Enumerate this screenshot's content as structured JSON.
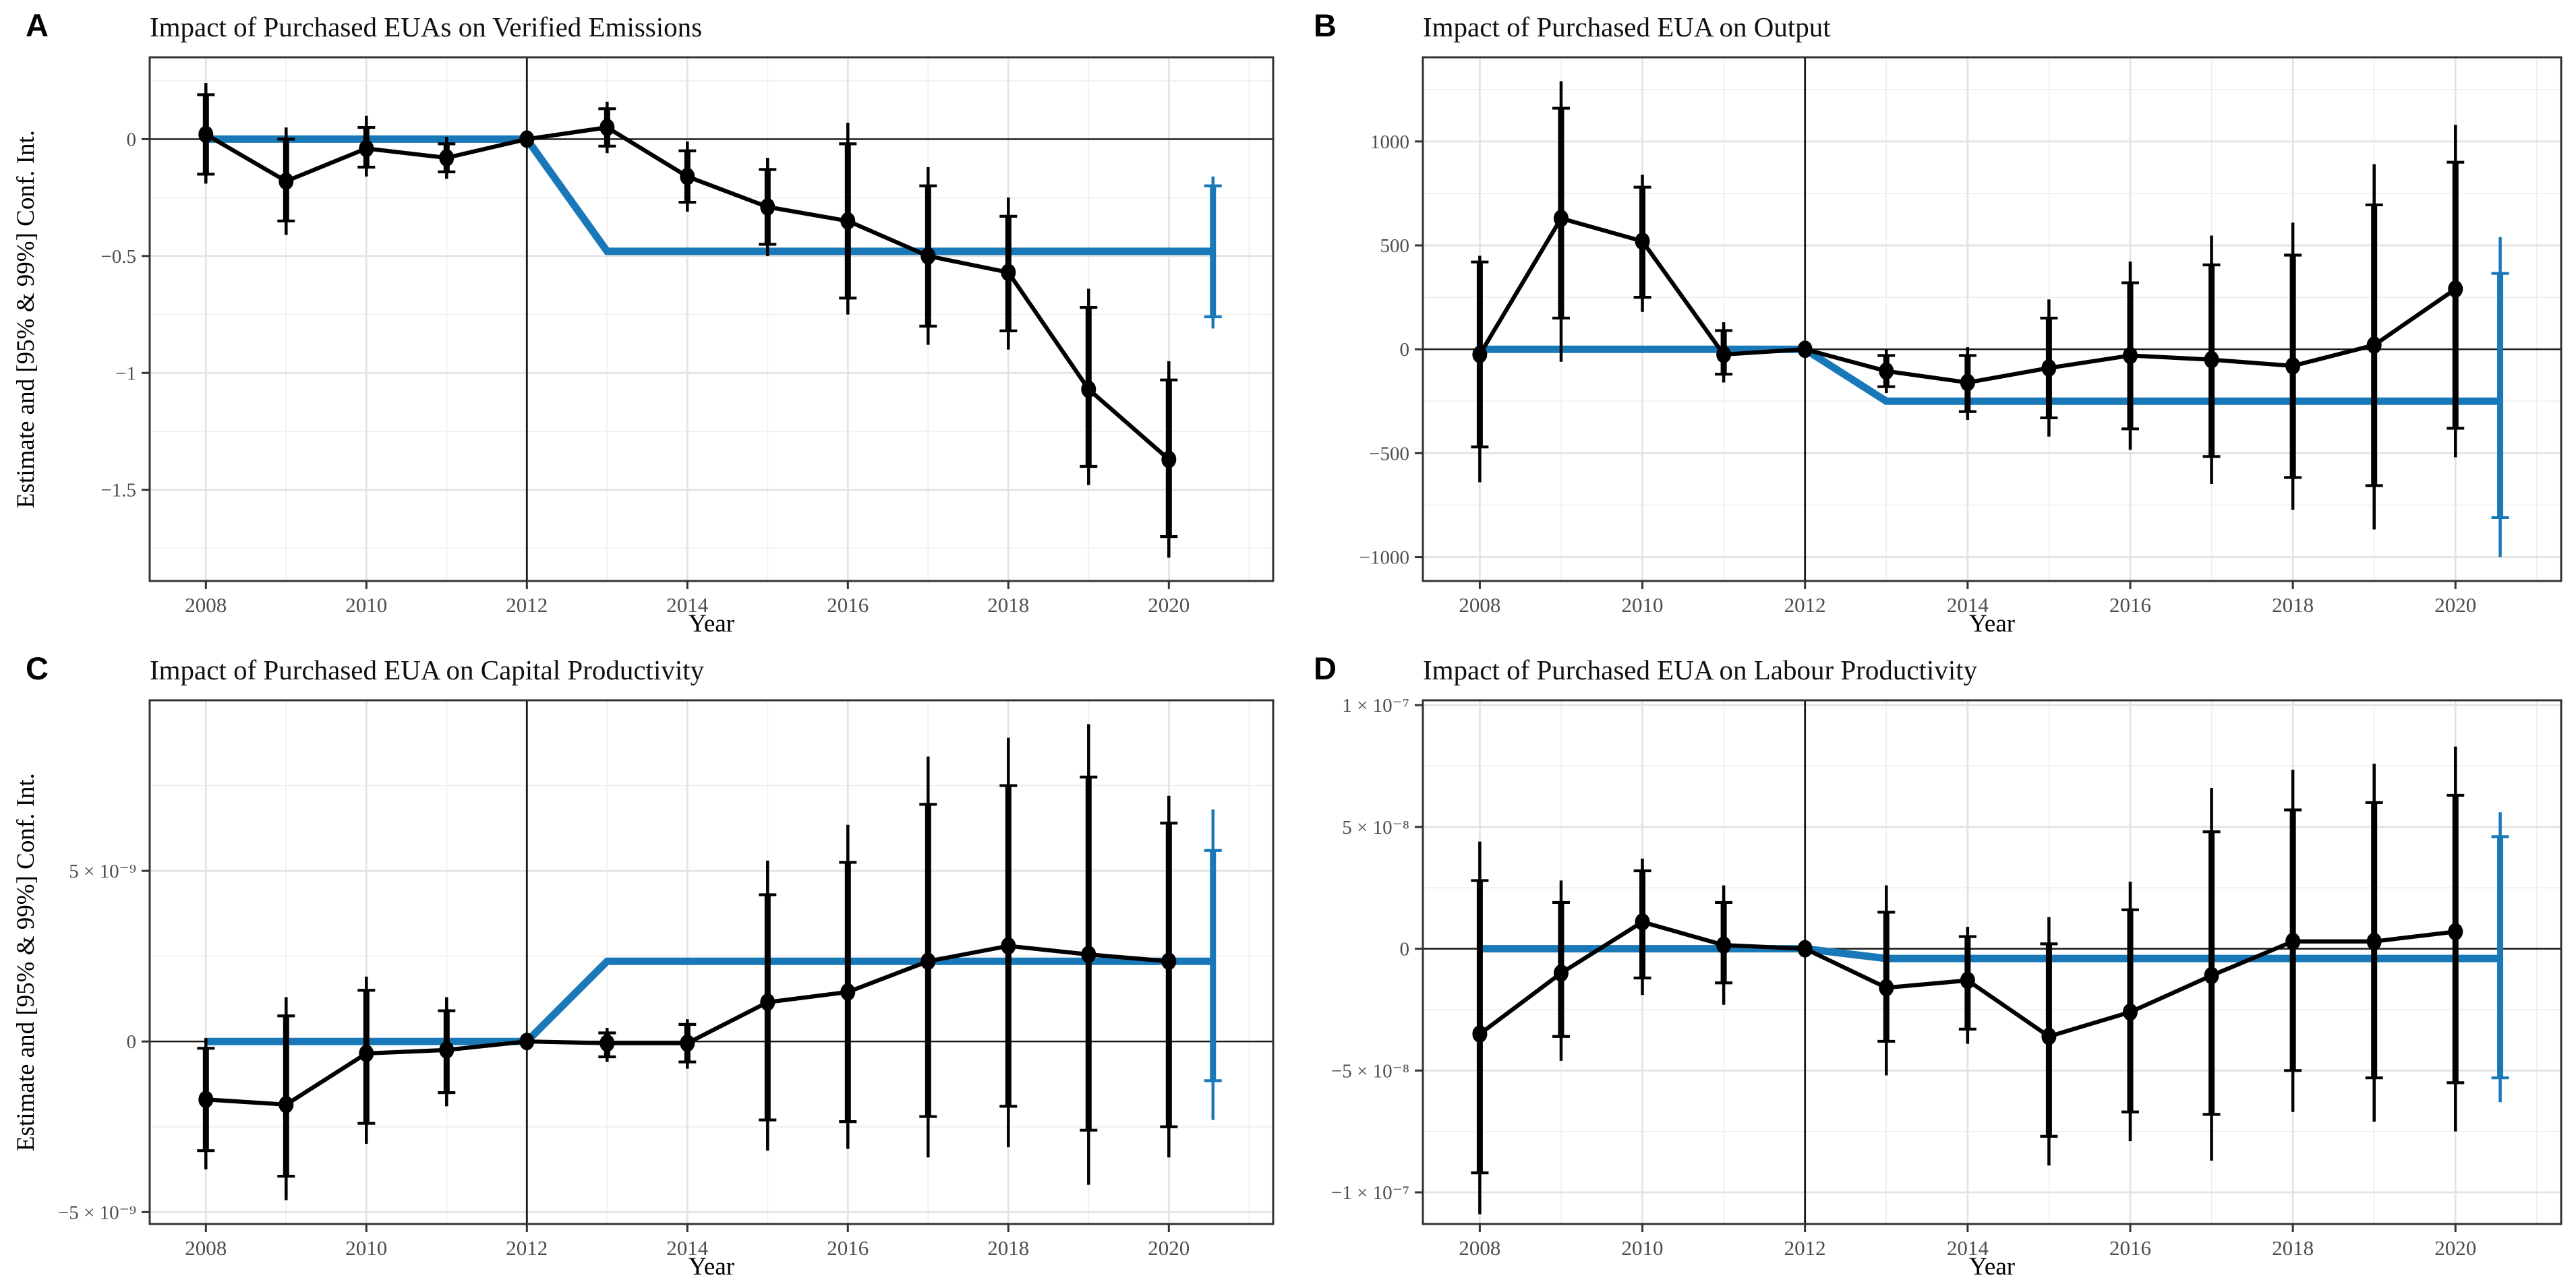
{
  "figure": {
    "colors": {
      "treatment_blue": "#1878b8",
      "series_black": "#000000",
      "grid_major": "#e3e3e3",
      "grid_minor": "#efefef",
      "panel_border": "#333333",
      "reference_line": "#1a1a1a",
      "tick_text": "#4d4d4d",
      "background": "#ffffff"
    }
  },
  "chart_data": [
    {
      "type": "line",
      "panel_label": "A",
      "title": "Impact of Purchased EUAs on Verified Emissions",
      "xlabel": "Year",
      "ylabel": "Estimate and [95% & 99%] Conf. Int.",
      "show_ylabel": true,
      "xlim": [
        2007.3,
        2021.3
      ],
      "ylim": [
        -1.89,
        0.35
      ],
      "x_ticks": [
        2008,
        2010,
        2012,
        2014,
        2016,
        2018,
        2020
      ],
      "x_minor": [
        2009,
        2011,
        2013,
        2015,
        2017,
        2019,
        2021
      ],
      "y_ticks": [
        {
          "v": 0,
          "label": "0"
        },
        {
          "v": -0.5,
          "label": "−0.5"
        },
        {
          "v": -1,
          "label": "−1"
        },
        {
          "v": -1.5,
          "label": "−1.5"
        }
      ],
      "y_minor": [
        0.25,
        -0.25,
        -0.75,
        -1.25,
        -1.75
      ],
      "hline_y": 0,
      "vline_x": 2012,
      "x": [
        2008,
        2009,
        2010,
        2011,
        2012,
        2013,
        2014,
        2015,
        2016,
        2017,
        2018,
        2019,
        2020
      ],
      "estimates": [
        0.02,
        -0.18,
        -0.04,
        -0.08,
        0,
        0.05,
        -0.16,
        -0.29,
        -0.35,
        -0.5,
        -0.57,
        -1.07,
        -1.37
      ],
      "ci95_low": [
        -0.15,
        -0.35,
        -0.12,
        -0.14,
        null,
        -0.03,
        -0.27,
        -0.45,
        -0.68,
        -0.8,
        -0.82,
        -1.4,
        -1.7
      ],
      "ci95_high": [
        0.19,
        0.0,
        0.05,
        -0.02,
        null,
        0.13,
        -0.05,
        -0.13,
        -0.02,
        -0.2,
        -0.33,
        -0.72,
        -1.03
      ],
      "ci99_low": [
        -0.19,
        -0.41,
        -0.16,
        -0.17,
        null,
        -0.06,
        -0.31,
        -0.5,
        -0.75,
        -0.88,
        -0.9,
        -1.48,
        -1.79
      ],
      "ci99_high": [
        0.24,
        0.05,
        0.1,
        0.01,
        null,
        0.16,
        -0.01,
        -0.08,
        0.07,
        -0.12,
        -0.25,
        -0.64,
        -0.95
      ],
      "treatment_line": {
        "x": [
          2008,
          2012,
          2013,
          2020.55
        ],
        "y": [
          0,
          0,
          -0.48,
          -0.48
        ]
      },
      "treatment_ci": {
        "x": 2020.55,
        "ci95": [
          -0.76,
          -0.2
        ],
        "ci99": [
          -0.81,
          -0.16
        ]
      }
    },
    {
      "type": "line",
      "panel_label": "B",
      "title": "Impact of Purchased EUA on Output",
      "xlabel": "Year",
      "ylabel": "",
      "show_ylabel": false,
      "xlim": [
        2007.3,
        2021.3
      ],
      "ylim": [
        -1115,
        1405
      ],
      "x_ticks": [
        2008,
        2010,
        2012,
        2014,
        2016,
        2018,
        2020
      ],
      "x_minor": [
        2009,
        2011,
        2013,
        2015,
        2017,
        2019,
        2021
      ],
      "y_ticks": [
        {
          "v": 1000,
          "label": "1000"
        },
        {
          "v": 500,
          "label": "500"
        },
        {
          "v": 0,
          "label": "0"
        },
        {
          "v": -500,
          "label": "−500"
        },
        {
          "v": -1000,
          "label": "−1000"
        }
      ],
      "y_minor": [
        1250,
        750,
        250,
        -250,
        -750
      ],
      "hline_y": 0,
      "vline_x": 2012,
      "x": [
        2008,
        2009,
        2010,
        2011,
        2012,
        2013,
        2014,
        2015,
        2016,
        2017,
        2018,
        2019,
        2020
      ],
      "estimates": [
        -25,
        630,
        520,
        -25,
        0,
        -105,
        -160,
        -90,
        -30,
        -50,
        -80,
        20,
        290
      ],
      "ci95_low": [
        -470,
        150,
        250,
        -120,
        null,
        -180,
        -300,
        -330,
        -383,
        -516,
        -617,
        -656,
        -380
      ],
      "ci95_high": [
        420,
        1160,
        780,
        90,
        null,
        -30,
        -30,
        150,
        320,
        406,
        453,
        695,
        900
      ],
      "ci99_low": [
        -640,
        -60,
        180,
        -160,
        null,
        -210,
        -340,
        -420,
        -484,
        -648,
        -773,
        -867,
        -520
      ],
      "ci99_high": [
        450,
        1290,
        840,
        130,
        null,
        0,
        10,
        240,
        422,
        547,
        609,
        891,
        1080
      ],
      "treatment_line": {
        "x": [
          2008,
          2012,
          2013,
          2020.55
        ],
        "y": [
          0,
          0,
          -250,
          -250
        ]
      },
      "treatment_ci": {
        "x": 2020.55,
        "ci95": [
          -810,
          365
        ],
        "ci99": [
          -1000,
          540
        ]
      }
    },
    {
      "type": "line",
      "panel_label": "C",
      "title": "Impact of Purchased EUA on Capital Productivity",
      "xlabel": "Year",
      "ylabel": "Estimate and [95% & 99%] Conf. Int.",
      "show_ylabel": true,
      "xlim": [
        2007.3,
        2021.3
      ],
      "ylim": [
        -5.35e-09,
        1e-08
      ],
      "x_ticks": [
        2008,
        2010,
        2012,
        2014,
        2016,
        2018,
        2020
      ],
      "x_minor": [
        2009,
        2011,
        2013,
        2015,
        2017,
        2019,
        2021
      ],
      "y_ticks": [
        {
          "v": 5e-09,
          "label": "5 × 10⁻⁹"
        },
        {
          "v": 0,
          "label": "0"
        },
        {
          "v": -5e-09,
          "label": "−5 × 10⁻⁹"
        }
      ],
      "y_minor": [
        7.5e-09,
        2.5e-09,
        -2.5e-09
      ],
      "hline_y": 0,
      "vline_x": 2012,
      "x": [
        2008,
        2009,
        2010,
        2011,
        2012,
        2013,
        2014,
        2015,
        2016,
        2017,
        2018,
        2019,
        2020
      ],
      "estimates": [
        -1.7e-09,
        -1.85e-09,
        -3.5e-10,
        -2.5e-10,
        0,
        -5e-11,
        -5e-11,
        1.15e-09,
        1.45e-09,
        2.35e-09,
        2.8e-09,
        2.55e-09,
        2.35e-09
      ],
      "ci95_low": [
        -3.2e-09,
        -3.95e-09,
        -2.4e-09,
        -1.5e-09,
        null,
        -4.5e-10,
        -6e-10,
        -2.3e-09,
        -2.35e-09,
        -2.2e-09,
        -1.9e-09,
        -2.6e-09,
        -2.5e-09
      ],
      "ci95_high": [
        -2e-10,
        7.5e-10,
        1.5e-09,
        9e-10,
        null,
        2.5e-10,
        5e-10,
        4.3e-09,
        5.25e-09,
        6.95e-09,
        7.5e-09,
        7.75e-09,
        6.4e-09
      ],
      "ci99_low": [
        -3.75e-09,
        -4.65e-09,
        -3e-09,
        -1.9e-09,
        null,
        -6e-10,
        -8e-10,
        -3.2e-09,
        -3.15e-09,
        -3.4e-09,
        -3.1e-09,
        -4.2e-09,
        -3.4e-09
      ],
      "ci99_high": [
        1e-10,
        1.3e-09,
        1.9e-09,
        1.3e-09,
        null,
        4e-10,
        6.5e-10,
        5.3e-09,
        6.35e-09,
        8.35e-09,
        8.9e-09,
        9.3e-09,
        7.2e-09
      ],
      "treatment_line": {
        "x": [
          2008,
          2012,
          2013,
          2020.55
        ],
        "y": [
          0,
          0,
          2.35e-09,
          2.35e-09
        ]
      },
      "treatment_ci": {
        "x": 2020.55,
        "ci95": [
          -1.15e-09,
          5.6e-09
        ],
        "ci99": [
          -2.3e-09,
          6.8e-09
        ]
      }
    },
    {
      "type": "line",
      "panel_label": "D",
      "title": "Impact of Purchased EUA on Labour Productivity",
      "xlabel": "Year",
      "ylabel": "",
      "show_ylabel": false,
      "xlim": [
        2007.3,
        2021.3
      ],
      "ylim": [
        -1.13e-07,
        1.02e-07
      ],
      "x_ticks": [
        2008,
        2010,
        2012,
        2014,
        2016,
        2018,
        2020
      ],
      "x_minor": [
        2009,
        2011,
        2013,
        2015,
        2017,
        2019,
        2021
      ],
      "y_ticks": [
        {
          "v": 1e-07,
          "label": "1 × 10⁻⁷"
        },
        {
          "v": 5e-08,
          "label": "5 × 10⁻⁸"
        },
        {
          "v": 0,
          "label": "0"
        },
        {
          "v": -5e-08,
          "label": "−5 × 10⁻⁸"
        },
        {
          "v": -1e-07,
          "label": "−1 × 10⁻⁷"
        }
      ],
      "y_minor": [
        7.5e-08,
        2.5e-08,
        -2.5e-08,
        -7.5e-08
      ],
      "hline_y": 0,
      "vline_x": 2012,
      "x": [
        2008,
        2009,
        2010,
        2011,
        2012,
        2013,
        2014,
        2015,
        2016,
        2017,
        2018,
        2019,
        2020
      ],
      "estimates": [
        -3.5e-08,
        -1e-08,
        1.1e-08,
        1.5e-09,
        0,
        -1.6e-08,
        -1.3e-08,
        -3.6e-08,
        -2.6e-08,
        -1.1e-08,
        3e-09,
        3e-09,
        7e-09
      ],
      "ci95_low": [
        -9.2e-08,
        -3.6e-08,
        -1.2e-08,
        -1.4e-08,
        null,
        -3.8e-08,
        -3.3e-08,
        -7.7e-08,
        -6.7e-08,
        -6.8e-08,
        -5e-08,
        -5.3e-08,
        -5.5e-08
      ],
      "ci95_high": [
        2.8e-08,
        1.9e-08,
        3.2e-08,
        1.9e-08,
        null,
        1.5e-08,
        5e-09,
        2e-09,
        1.6e-08,
        4.8e-08,
        5.7e-08,
        6e-08,
        6.3e-08
      ],
      "ci99_low": [
        -1.09e-07,
        -4.6e-08,
        -1.9e-08,
        -2.3e-08,
        null,
        -5.2e-08,
        -3.9e-08,
        -8.9e-08,
        -7.9e-08,
        -8.7e-08,
        -6.7e-08,
        -7.1e-08,
        -7.5e-08
      ],
      "ci99_high": [
        4.4e-08,
        2.8e-08,
        3.7e-08,
        2.6e-08,
        null,
        2.6e-08,
        9e-09,
        1.3e-08,
        2.75e-08,
        6.6e-08,
        7.35e-08,
        7.6e-08,
        8.3e-08
      ],
      "treatment_line": {
        "x": [
          2008,
          2012,
          2013,
          2020.55
        ],
        "y": [
          0,
          0,
          -4e-09,
          -4e-09
        ]
      },
      "treatment_ci": {
        "x": 2020.55,
        "ci95": [
          -5.3e-08,
          4.6e-08
        ],
        "ci99": [
          -6.3e-08,
          5.6e-08
        ]
      }
    }
  ]
}
